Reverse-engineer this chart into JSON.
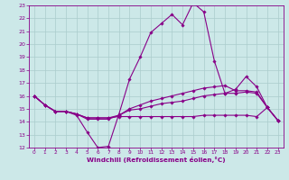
{
  "title": "",
  "xlabel": "Windchill (Refroidissement éolien,°C)",
  "xlim": [
    -0.5,
    23.5
  ],
  "ylim": [
    12,
    23
  ],
  "yticks": [
    12,
    13,
    14,
    15,
    16,
    17,
    18,
    19,
    20,
    21,
    22,
    23
  ],
  "xticks": [
    0,
    1,
    2,
    3,
    4,
    5,
    6,
    7,
    8,
    9,
    10,
    11,
    12,
    13,
    14,
    15,
    16,
    17,
    18,
    19,
    20,
    21,
    22,
    23
  ],
  "bg_color": "#cce8e8",
  "line_color": "#880088",
  "grid_color": "#aacccc",
  "lines": [
    [
      16.0,
      15.3,
      14.8,
      14.8,
      14.5,
      13.2,
      12.0,
      12.1,
      14.6,
      17.3,
      19.0,
      20.9,
      21.6,
      22.3,
      21.5,
      23.2,
      22.5,
      18.7,
      16.2,
      16.5,
      17.5,
      16.7,
      15.1,
      14.1
    ],
    [
      16.0,
      15.3,
      14.8,
      14.8,
      14.6,
      14.2,
      14.2,
      14.2,
      14.5,
      15.0,
      15.3,
      15.6,
      15.8,
      16.0,
      16.2,
      16.4,
      16.6,
      16.7,
      16.8,
      16.4,
      16.4,
      16.3,
      15.1,
      14.1
    ],
    [
      16.0,
      15.3,
      14.8,
      14.8,
      14.6,
      14.3,
      14.3,
      14.3,
      14.5,
      14.9,
      15.0,
      15.2,
      15.4,
      15.5,
      15.6,
      15.8,
      16.0,
      16.1,
      16.2,
      16.2,
      16.3,
      16.2,
      15.1,
      14.1
    ],
    [
      16.0,
      15.3,
      14.8,
      14.8,
      14.6,
      14.3,
      14.3,
      14.3,
      14.4,
      14.4,
      14.4,
      14.4,
      14.4,
      14.4,
      14.4,
      14.4,
      14.5,
      14.5,
      14.5,
      14.5,
      14.5,
      14.4,
      15.1,
      14.1
    ]
  ]
}
